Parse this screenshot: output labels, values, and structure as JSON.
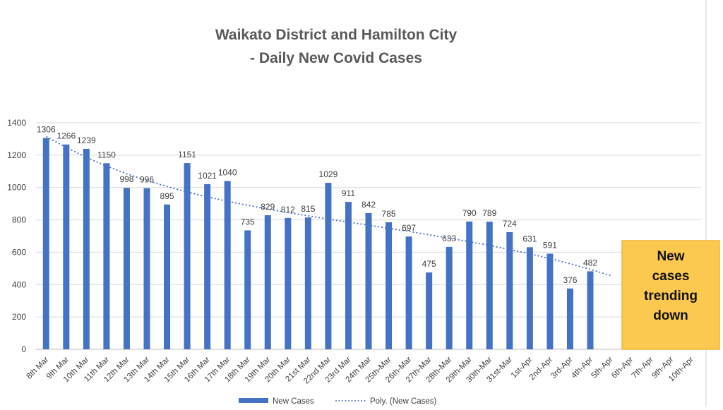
{
  "chart_data": {
    "type": "bar",
    "title": [
      "Waikato District and Hamilton City",
      "- Daily New Covid Cases"
    ],
    "categories": [
      "8th Mar",
      "9th Mar",
      "10th Mar",
      "11th Mar",
      "12th Mar",
      "13th Mar",
      "14th Mar",
      "15th Mar",
      "16th Mar",
      "17th Mar",
      "18th Mar",
      "19th Mar",
      "20th Mar",
      "21st Mar",
      "22nd Mar",
      "23rd Mar",
      "24th Mar",
      "25th-Mar",
      "26th-Mar",
      "27th-Mar",
      "28th-Mar",
      "29th-Mar",
      "30th-Mar",
      "31st-Mar",
      "1st-Apr",
      "2nd-Apr",
      "3rd-Apr",
      "4th-Apr",
      "5th-Apr",
      "6th-Apr",
      "7th-Apr",
      "9th-Apr",
      "10th-Apr"
    ],
    "series": [
      {
        "name": "New Cases",
        "color": "#4472c4",
        "values": [
          1306,
          1266,
          1239,
          1150,
          998,
          996,
          895,
          1151,
          1021,
          1040,
          735,
          829,
          812,
          815,
          1029,
          911,
          842,
          785,
          697,
          475,
          633,
          790,
          789,
          724,
          631,
          591,
          376,
          482,
          null,
          null,
          null,
          null,
          null
        ]
      }
    ],
    "trendline": {
      "name": "Poly. (New Cases)",
      "type": "polynomial",
      "color": "#4472c4",
      "start_index": 0,
      "end_index": 28,
      "values": [
        1315,
        1248,
        1186,
        1132,
        1085,
        1043,
        1006,
        972,
        942,
        915,
        890,
        867,
        845,
        825,
        805,
        786,
        767,
        748,
        729,
        708,
        687,
        665,
        642,
        617,
        590,
        561,
        529,
        494,
        456
      ]
    },
    "ylim": [
      0,
      1400
    ],
    "yticks": [
      0,
      200,
      400,
      600,
      800,
      1000,
      1200,
      1400
    ],
    "grid": true,
    "legend": {
      "position": "bottom",
      "items": [
        "New Cases",
        "Poly. (New Cases)"
      ]
    },
    "annotation": {
      "lines": [
        "New",
        "cases",
        "trending",
        "down"
      ],
      "fill": "#fbc94f",
      "border": "#f0b43a"
    }
  }
}
